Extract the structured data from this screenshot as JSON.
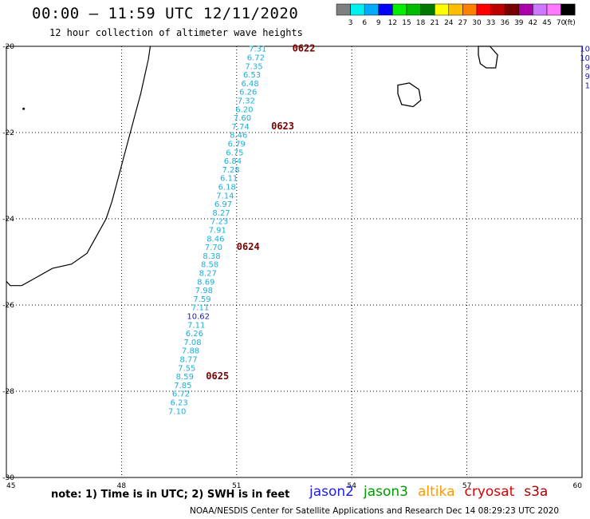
{
  "title": "00:00 – 11:59 UTC 12/11/2020",
  "subtitle": "12 hour collection of altimeter wave heights",
  "colorbar": {
    "labels": [
      "3",
      "6",
      "9",
      "12",
      "15",
      "18",
      "21",
      "24",
      "27",
      "30",
      "33",
      "36",
      "39",
      "42",
      "45",
      "70"
    ],
    "unit": "(ft)",
    "colors": [
      "#7f7f7f",
      "#00f0f0",
      "#00aaff",
      "#0000ff",
      "#00ee00",
      "#00bb00",
      "#007700",
      "#ffff00",
      "#ffbf00",
      "#ff7f00",
      "#ff0000",
      "#bb0000",
      "#770000",
      "#aa00aa",
      "#cc77ff",
      "#ff77ff",
      "#000000"
    ]
  },
  "chart_data": {
    "type": "map",
    "lon_range": [
      45,
      60
    ],
    "lat_range": [
      -30,
      -20
    ],
    "x_ticks": [
      "45",
      "48",
      "51",
      "54",
      "57",
      "60"
    ],
    "y_ticks": [
      "-20",
      "-22",
      "-24",
      "-26",
      "-28",
      "-30"
    ],
    "track_observations": [
      {
        "lat": -20.05,
        "lon": 51.55,
        "swh": "7.31"
      },
      {
        "lat": -20.25,
        "lon": 51.5,
        "swh": "6.72"
      },
      {
        "lat": -20.45,
        "lon": 51.45,
        "swh": "7.35"
      },
      {
        "lat": -20.65,
        "lon": 51.4,
        "swh": "6.53"
      },
      {
        "lat": -20.85,
        "lon": 51.35,
        "swh": "6.48"
      },
      {
        "lat": -21.05,
        "lon": 51.3,
        "swh": "6.26"
      },
      {
        "lat": -21.25,
        "lon": 51.25,
        "swh": "7.32"
      },
      {
        "lat": -21.45,
        "lon": 51.2,
        "swh": "6.20"
      },
      {
        "lat": -21.65,
        "lon": 51.15,
        "swh": "7.60"
      },
      {
        "lat": -21.85,
        "lon": 51.1,
        "swh": "7.74"
      },
      {
        "lat": -22.05,
        "lon": 51.05,
        "swh": "8.46"
      },
      {
        "lat": -22.25,
        "lon": 51.0,
        "swh": "6.79"
      },
      {
        "lat": -22.45,
        "lon": 50.95,
        "swh": "6.75"
      },
      {
        "lat": -22.65,
        "lon": 50.9,
        "swh": "6.84"
      },
      {
        "lat": -22.85,
        "lon": 50.85,
        "swh": "7.28"
      },
      {
        "lat": -23.05,
        "lon": 50.8,
        "swh": "6.11"
      },
      {
        "lat": -23.25,
        "lon": 50.75,
        "swh": "6.18"
      },
      {
        "lat": -23.45,
        "lon": 50.7,
        "swh": "7.14"
      },
      {
        "lat": -23.65,
        "lon": 50.65,
        "swh": "6.97"
      },
      {
        "lat": -23.85,
        "lon": 50.6,
        "swh": "8.27"
      },
      {
        "lat": -24.05,
        "lon": 50.55,
        "swh": "7.23"
      },
      {
        "lat": -24.25,
        "lon": 50.5,
        "swh": "7.91"
      },
      {
        "lat": -24.45,
        "lon": 50.45,
        "swh": "8.46"
      },
      {
        "lat": -24.65,
        "lon": 50.4,
        "swh": "7.70"
      },
      {
        "lat": -24.85,
        "lon": 50.35,
        "swh": "8.38"
      },
      {
        "lat": -25.05,
        "lon": 50.3,
        "swh": "8.58"
      },
      {
        "lat": -25.25,
        "lon": 50.25,
        "swh": "8.27"
      },
      {
        "lat": -25.45,
        "lon": 50.2,
        "swh": "8.69"
      },
      {
        "lat": -25.65,
        "lon": 50.15,
        "swh": "7.98"
      },
      {
        "lat": -25.85,
        "lon": 50.1,
        "swh": "7.59"
      },
      {
        "lat": -26.05,
        "lon": 50.05,
        "swh": "7.11"
      },
      {
        "lat": -26.25,
        "lon": 50.0,
        "swh": "10.62"
      },
      {
        "lat": -26.45,
        "lon": 49.95,
        "swh": "7.11"
      },
      {
        "lat": -26.65,
        "lon": 49.9,
        "swh": "6.26"
      },
      {
        "lat": -26.85,
        "lon": 49.85,
        "swh": "7.08"
      },
      {
        "lat": -27.05,
        "lon": 49.8,
        "swh": "7.88"
      },
      {
        "lat": -27.25,
        "lon": 49.75,
        "swh": "8.77"
      },
      {
        "lat": -27.45,
        "lon": 49.7,
        "swh": "7.55"
      },
      {
        "lat": -27.65,
        "lon": 49.65,
        "swh": "8.59"
      },
      {
        "lat": -27.85,
        "lon": 49.6,
        "swh": "7.85"
      },
      {
        "lat": -28.05,
        "lon": 49.55,
        "swh": "6.72"
      },
      {
        "lat": -28.25,
        "lon": 49.5,
        "swh": "6.23"
      },
      {
        "lat": -28.45,
        "lon": 49.45,
        "swh": "7.10"
      }
    ],
    "time_labels": [
      {
        "lat": -20.05,
        "lon": 52.45,
        "text": "0622"
      },
      {
        "lat": -21.85,
        "lon": 51.9,
        "text": "0623"
      },
      {
        "lat": -24.65,
        "lon": 51.0,
        "text": "0624"
      },
      {
        "lat": -27.65,
        "lon": 50.2,
        "text": "0625"
      }
    ],
    "edge_values": [
      "10",
      "10",
      "9",
      "9",
      "1"
    ]
  },
  "footer": {
    "note": "note: 1) Time is in UTC; 2) SWH is in feet",
    "satellites": [
      {
        "name": "jason2",
        "color": "#1a1aff"
      },
      {
        "name": "jason3",
        "color": "#009900"
      },
      {
        "name": "altika",
        "color": "#ff9900"
      },
      {
        "name": "cryosat",
        "color": "#dd0000"
      },
      {
        "name": "s3a",
        "color": "#aa0000"
      }
    ],
    "credit": "NOAA/NESDIS Center for Satellite Applications and Research    Dec 14 08:29:23 UTC 2020"
  }
}
